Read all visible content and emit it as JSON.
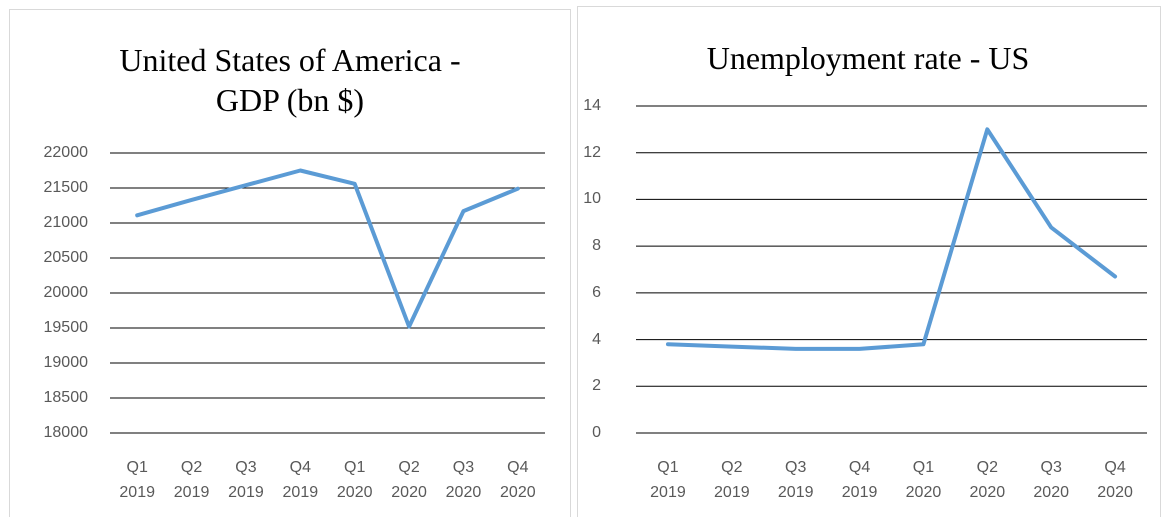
{
  "chart_data": [
    {
      "type": "line",
      "title": "United States of America - GDP (bn $)",
      "categories": [
        "Q1 2019",
        "Q2 2019",
        "Q3 2019",
        "Q4 2019",
        "Q1 2020",
        "Q2 2020",
        "Q3 2020",
        "Q4 2020"
      ],
      "values": [
        21110,
        21330,
        21540,
        21750,
        21560,
        19520,
        21170,
        21490
      ],
      "color": "#5b9bd5",
      "ylim": [
        18000,
        22000
      ],
      "yticks": [
        18000,
        18500,
        19000,
        19500,
        20000,
        20500,
        21000,
        21500,
        22000
      ],
      "grid": true
    },
    {
      "type": "line",
      "title": "Unemployment rate - US",
      "categories": [
        "Q1 2019",
        "Q2 2019",
        "Q3 2019",
        "Q4 2019",
        "Q1 2020",
        "Q2 2020",
        "Q3 2020",
        "Q4 2020"
      ],
      "values": [
        3.8,
        3.7,
        3.6,
        3.6,
        3.8,
        13.0,
        8.8,
        6.7
      ],
      "color": "#5b9bd5",
      "ylim": [
        0,
        14
      ],
      "yticks": [
        0,
        2,
        4,
        6,
        8,
        10,
        12,
        14
      ],
      "grid": true
    }
  ]
}
